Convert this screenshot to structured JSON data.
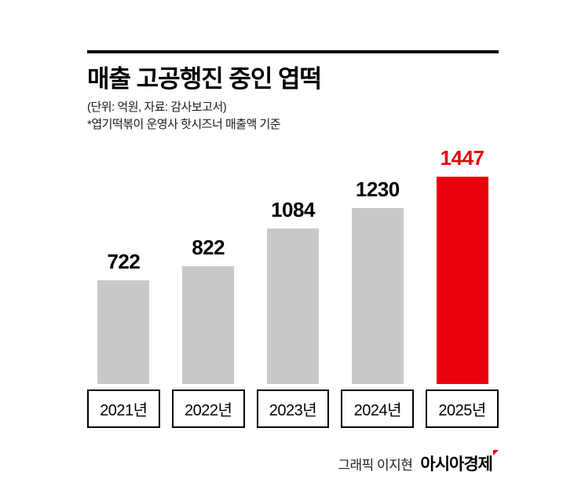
{
  "header": {
    "title": "매출 고공행진 중인 엽떡",
    "subtitle_unit": "(단위: 억원, 자료: 감사보고서)",
    "subtitle_note": "*엽기떡볶이 운영사 핫시즈너 매출액 기준"
  },
  "chart_data": {
    "type": "bar",
    "title": "매출 고공행진 중인 엽떡",
    "categories": [
      "2021년",
      "2022년",
      "2023년",
      "2024년",
      "2025년"
    ],
    "values": [
      722,
      822,
      1084,
      1230,
      1447
    ],
    "unit": "억원",
    "source": "감사보고서",
    "highlight_index": 4,
    "bar_color": "#c9c9c9",
    "highlight_color": "#e8000d",
    "ylim": [
      0,
      1500
    ],
    "legend": "none",
    "grid": false
  },
  "footer": {
    "credit": "그래픽 이지현",
    "brand": "아시아경제",
    "brand_mark": "red-flag-mark"
  }
}
